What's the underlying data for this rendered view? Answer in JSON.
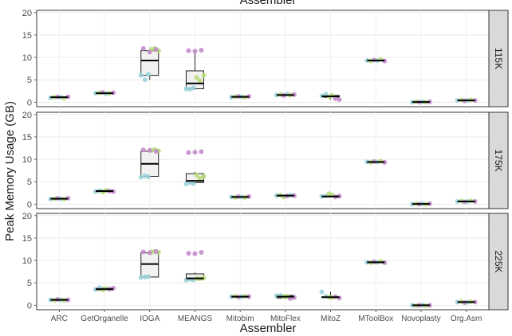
{
  "chart_data": {
    "type": "box",
    "title": "Assembler",
    "xlabel": "Assembler",
    "ylabel": "Peak Memory Usage (GB)",
    "ylim": [
      -1,
      20.5
    ],
    "yticks": [
      0,
      5,
      10,
      15,
      20
    ],
    "categories": [
      "ARC",
      "GetOrganelle",
      "IOGA",
      "MEANGS",
      "Mitobim",
      "MitoFlex",
      "MitoZ",
      "MToolBox",
      "Novoplasty",
      "Org.Asm"
    ],
    "grid": true,
    "point_colors": [
      "#9bd3d9",
      "#b8dd7a",
      "#c38ccc"
    ],
    "panels": [
      {
        "label": "115K",
        "boxes": [
          {
            "q1": 1.0,
            "median": 1.1,
            "q3": 1.2,
            "lo": 0.9,
            "hi": 1.3
          },
          {
            "q1": 1.9,
            "median": 2.0,
            "q3": 2.2,
            "lo": 1.8,
            "hi": 2.3
          },
          {
            "q1": 6.0,
            "median": 9.3,
            "q3": 11.5,
            "lo": 5.0,
            "hi": 12.0
          },
          {
            "q1": 3.0,
            "median": 4.2,
            "q3": 7.0,
            "lo": 2.8,
            "hi": 11.5
          },
          {
            "q1": 1.1,
            "median": 1.2,
            "q3": 1.3,
            "lo": 1.0,
            "hi": 1.4
          },
          {
            "q1": 1.5,
            "median": 1.6,
            "q3": 1.8,
            "lo": 1.4,
            "hi": 1.9
          },
          {
            "q1": 1.1,
            "median": 1.3,
            "q3": 1.5,
            "lo": 0.6,
            "hi": 1.8
          },
          {
            "q1": 9.2,
            "median": 9.3,
            "q3": 9.5,
            "lo": 9.0,
            "hi": 9.6
          },
          {
            "q1": 0.0,
            "median": 0.05,
            "q3": 0.1,
            "lo": -0.1,
            "hi": 0.2
          },
          {
            "q1": 0.3,
            "median": 0.4,
            "q3": 0.5,
            "lo": 0.2,
            "hi": 0.6
          }
        ],
        "points": [
          [
            [
              1.0,
              0
            ],
            [
              1.1,
              1
            ],
            [
              1.2,
              2
            ],
            [
              1.1,
              0
            ],
            [
              0.9,
              1
            ],
            [
              1.2,
              2
            ]
          ],
          [
            [
              2.0,
              0
            ],
            [
              2.1,
              1
            ],
            [
              2.2,
              2
            ],
            [
              1.9,
              0
            ],
            [
              2.0,
              1
            ],
            [
              2.1,
              2
            ]
          ],
          [
            [
              6.0,
              0
            ],
            [
              5.0,
              0
            ],
            [
              6.2,
              0
            ],
            [
              11.8,
              1
            ],
            [
              12.0,
              1
            ],
            [
              11.5,
              1
            ],
            [
              12.0,
              2
            ],
            [
              11.8,
              2
            ],
            [
              11.2,
              2
            ]
          ],
          [
            [
              3.0,
              0
            ],
            [
              2.9,
              0
            ],
            [
              3.2,
              0
            ],
            [
              5.5,
              1
            ],
            [
              4.8,
              1
            ],
            [
              6.0,
              1
            ],
            [
              11.5,
              2
            ],
            [
              11.6,
              2
            ],
            [
              11.4,
              2
            ]
          ],
          [
            [
              1.1,
              0
            ],
            [
              1.2,
              1
            ],
            [
              1.3,
              2
            ],
            [
              1.2,
              0
            ],
            [
              1.1,
              1
            ],
            [
              1.3,
              2
            ]
          ],
          [
            [
              1.6,
              0
            ],
            [
              1.7,
              1
            ],
            [
              1.5,
              2
            ],
            [
              1.8,
              0
            ],
            [
              1.6,
              1
            ],
            [
              1.7,
              2
            ]
          ],
          [
            [
              1.4,
              0
            ],
            [
              1.8,
              0
            ],
            [
              1.2,
              1
            ],
            [
              1.5,
              1
            ],
            [
              0.8,
              2
            ],
            [
              0.6,
              2
            ]
          ],
          [
            [
              9.3,
              0
            ],
            [
              9.2,
              1
            ],
            [
              9.4,
              2
            ],
            [
              9.3,
              0
            ],
            [
              9.5,
              1
            ],
            [
              9.2,
              2
            ]
          ],
          [
            [
              0.0,
              0
            ],
            [
              0.1,
              1
            ],
            [
              0.0,
              2
            ],
            [
              0.1,
              0
            ],
            [
              0.0,
              1
            ],
            [
              0.1,
              2
            ]
          ],
          [
            [
              0.4,
              0
            ],
            [
              0.5,
              1
            ],
            [
              0.3,
              2
            ],
            [
              0.4,
              0
            ],
            [
              0.5,
              1
            ],
            [
              0.4,
              2
            ]
          ]
        ]
      },
      {
        "label": "175K",
        "boxes": [
          {
            "q1": 1.1,
            "median": 1.2,
            "q3": 1.3,
            "lo": 1.0,
            "hi": 1.4
          },
          {
            "q1": 2.7,
            "median": 2.9,
            "q3": 3.1,
            "lo": 2.4,
            "hi": 3.3
          },
          {
            "q1": 6.2,
            "median": 9.0,
            "q3": 11.8,
            "lo": 6.0,
            "hi": 12.2
          },
          {
            "q1": 4.8,
            "median": 5.2,
            "q3": 6.8,
            "lo": 4.4,
            "hi": 7.2
          },
          {
            "q1": 1.5,
            "median": 1.6,
            "q3": 1.7,
            "lo": 1.4,
            "hi": 1.8
          },
          {
            "q1": 1.7,
            "median": 1.9,
            "q3": 2.0,
            "lo": 1.5,
            "hi": 2.1
          },
          {
            "q1": 1.6,
            "median": 1.7,
            "q3": 1.9,
            "lo": 1.5,
            "hi": 2.4
          },
          {
            "q1": 9.3,
            "median": 9.4,
            "q3": 9.6,
            "lo": 9.1,
            "hi": 9.7
          },
          {
            "q1": 0.0,
            "median": 0.05,
            "q3": 0.1,
            "lo": -0.1,
            "hi": 0.2
          },
          {
            "q1": 0.5,
            "median": 0.6,
            "q3": 0.7,
            "lo": 0.4,
            "hi": 0.8
          }
        ],
        "points": [
          [
            [
              1.1,
              0
            ],
            [
              1.2,
              1
            ],
            [
              1.3,
              2
            ],
            [
              1.2,
              0
            ],
            [
              1.1,
              1
            ],
            [
              1.3,
              2
            ]
          ],
          [
            [
              2.8,
              0
            ],
            [
              3.0,
              0
            ],
            [
              2.7,
              1
            ],
            [
              3.1,
              1
            ],
            [
              2.9,
              2
            ],
            [
              2.8,
              2
            ]
          ],
          [
            [
              6.0,
              0
            ],
            [
              6.3,
              0
            ],
            [
              6.1,
              0
            ],
            [
              12.0,
              1
            ],
            [
              12.2,
              1
            ],
            [
              11.9,
              1
            ],
            [
              12.1,
              2
            ],
            [
              11.8,
              2
            ],
            [
              12.0,
              2
            ]
          ],
          [
            [
              4.5,
              0
            ],
            [
              4.8,
              0
            ],
            [
              4.6,
              0
            ],
            [
              6.5,
              1
            ],
            [
              5.8,
              1
            ],
            [
              6.2,
              1
            ],
            [
              11.5,
              2
            ],
            [
              11.7,
              2
            ],
            [
              11.6,
              2
            ]
          ],
          [
            [
              1.6,
              0
            ],
            [
              1.5,
              1
            ],
            [
              1.7,
              2
            ],
            [
              1.6,
              0
            ],
            [
              1.5,
              1
            ],
            [
              1.7,
              2
            ]
          ],
          [
            [
              1.9,
              0
            ],
            [
              2.0,
              1
            ],
            [
              1.6,
              1
            ],
            [
              1.8,
              2
            ],
            [
              2.0,
              0
            ],
            [
              1.9,
              2
            ]
          ],
          [
            [
              1.7,
              0
            ],
            [
              1.8,
              0
            ],
            [
              2.3,
              1
            ],
            [
              2.0,
              1
            ],
            [
              1.6,
              2
            ],
            [
              1.8,
              2
            ]
          ],
          [
            [
              9.4,
              0
            ],
            [
              9.3,
              1
            ],
            [
              9.5,
              2
            ],
            [
              9.4,
              0
            ],
            [
              9.6,
              1
            ],
            [
              9.3,
              2
            ]
          ],
          [
            [
              0.0,
              0
            ],
            [
              0.1,
              1
            ],
            [
              0.0,
              2
            ],
            [
              0.1,
              0
            ],
            [
              0.0,
              1
            ],
            [
              0.1,
              2
            ]
          ],
          [
            [
              0.6,
              0
            ],
            [
              0.7,
              1
            ],
            [
              0.5,
              2
            ],
            [
              0.6,
              0
            ],
            [
              0.7,
              1
            ],
            [
              0.6,
              2
            ]
          ]
        ]
      },
      {
        "label": "225K",
        "boxes": [
          {
            "q1": 1.1,
            "median": 1.2,
            "q3": 1.3,
            "lo": 1.0,
            "hi": 1.4
          },
          {
            "q1": 3.4,
            "median": 3.6,
            "q3": 3.9,
            "lo": 3.2,
            "hi": 4.1
          },
          {
            "q1": 6.3,
            "median": 9.2,
            "q3": 11.7,
            "lo": 6.2,
            "hi": 12.0
          },
          {
            "q1": 5.7,
            "median": 6.0,
            "q3": 7.0,
            "lo": 5.5,
            "hi": 7.3
          },
          {
            "q1": 1.8,
            "median": 1.9,
            "q3": 2.0,
            "lo": 1.7,
            "hi": 2.1
          },
          {
            "q1": 1.6,
            "median": 1.9,
            "q3": 2.2,
            "lo": 1.4,
            "hi": 2.3
          },
          {
            "q1": 1.7,
            "median": 1.8,
            "q3": 1.9,
            "lo": 1.6,
            "hi": 3.0
          },
          {
            "q1": 9.4,
            "median": 9.6,
            "q3": 9.8,
            "lo": 9.2,
            "hi": 9.9
          },
          {
            "q1": -0.1,
            "median": 0.0,
            "q3": 0.05,
            "lo": -0.2,
            "hi": 0.1
          },
          {
            "q1": 0.6,
            "median": 0.7,
            "q3": 0.8,
            "lo": 0.5,
            "hi": 0.9
          }
        ],
        "points": [
          [
            [
              1.2,
              0
            ],
            [
              1.1,
              1
            ],
            [
              1.3,
              2
            ],
            [
              1.2,
              0
            ],
            [
              1.1,
              1
            ],
            [
              1.2,
              2
            ]
          ],
          [
            [
              3.5,
              0
            ],
            [
              3.9,
              0
            ],
            [
              3.4,
              1
            ],
            [
              3.7,
              1
            ],
            [
              3.6,
              2
            ],
            [
              3.8,
              2
            ]
          ],
          [
            [
              6.2,
              0
            ],
            [
              6.3,
              0
            ],
            [
              6.4,
              0
            ],
            [
              11.9,
              1
            ],
            [
              12.0,
              1
            ],
            [
              11.8,
              1
            ],
            [
              11.9,
              2
            ],
            [
              12.0,
              2
            ],
            [
              11.7,
              2
            ]
          ],
          [
            [
              5.6,
              0
            ],
            [
              5.8,
              0
            ],
            [
              5.7,
              0
            ],
            [
              6.0,
              1
            ],
            [
              5.9,
              1
            ],
            [
              6.1,
              1
            ],
            [
              11.6,
              2
            ],
            [
              11.8,
              2
            ],
            [
              11.5,
              2
            ]
          ],
          [
            [
              1.9,
              0
            ],
            [
              2.0,
              1
            ],
            [
              1.8,
              2
            ],
            [
              1.9,
              0
            ],
            [
              2.0,
              1
            ],
            [
              1.9,
              2
            ]
          ],
          [
            [
              2.1,
              0
            ],
            [
              2.2,
              0
            ],
            [
              1.9,
              1
            ],
            [
              2.0,
              1
            ],
            [
              1.5,
              2
            ],
            [
              1.7,
              2
            ]
          ],
          [
            [
              3.0,
              0
            ],
            [
              2.0,
              0
            ],
            [
              1.8,
              1
            ],
            [
              1.7,
              1
            ],
            [
              1.9,
              2
            ],
            [
              1.6,
              2
            ]
          ],
          [
            [
              9.6,
              0
            ],
            [
              9.5,
              1
            ],
            [
              9.7,
              2
            ],
            [
              9.6,
              0
            ],
            [
              9.8,
              1
            ],
            [
              9.5,
              2
            ]
          ],
          [
            [
              0.0,
              0
            ],
            [
              -0.1,
              1
            ],
            [
              0.0,
              2
            ],
            [
              0.05,
              0
            ],
            [
              -0.1,
              1
            ],
            [
              0.0,
              2
            ]
          ],
          [
            [
              0.7,
              0
            ],
            [
              0.8,
              1
            ],
            [
              0.6,
              2
            ],
            [
              0.7,
              0
            ],
            [
              0.8,
              1
            ],
            [
              0.7,
              2
            ]
          ]
        ]
      }
    ]
  }
}
